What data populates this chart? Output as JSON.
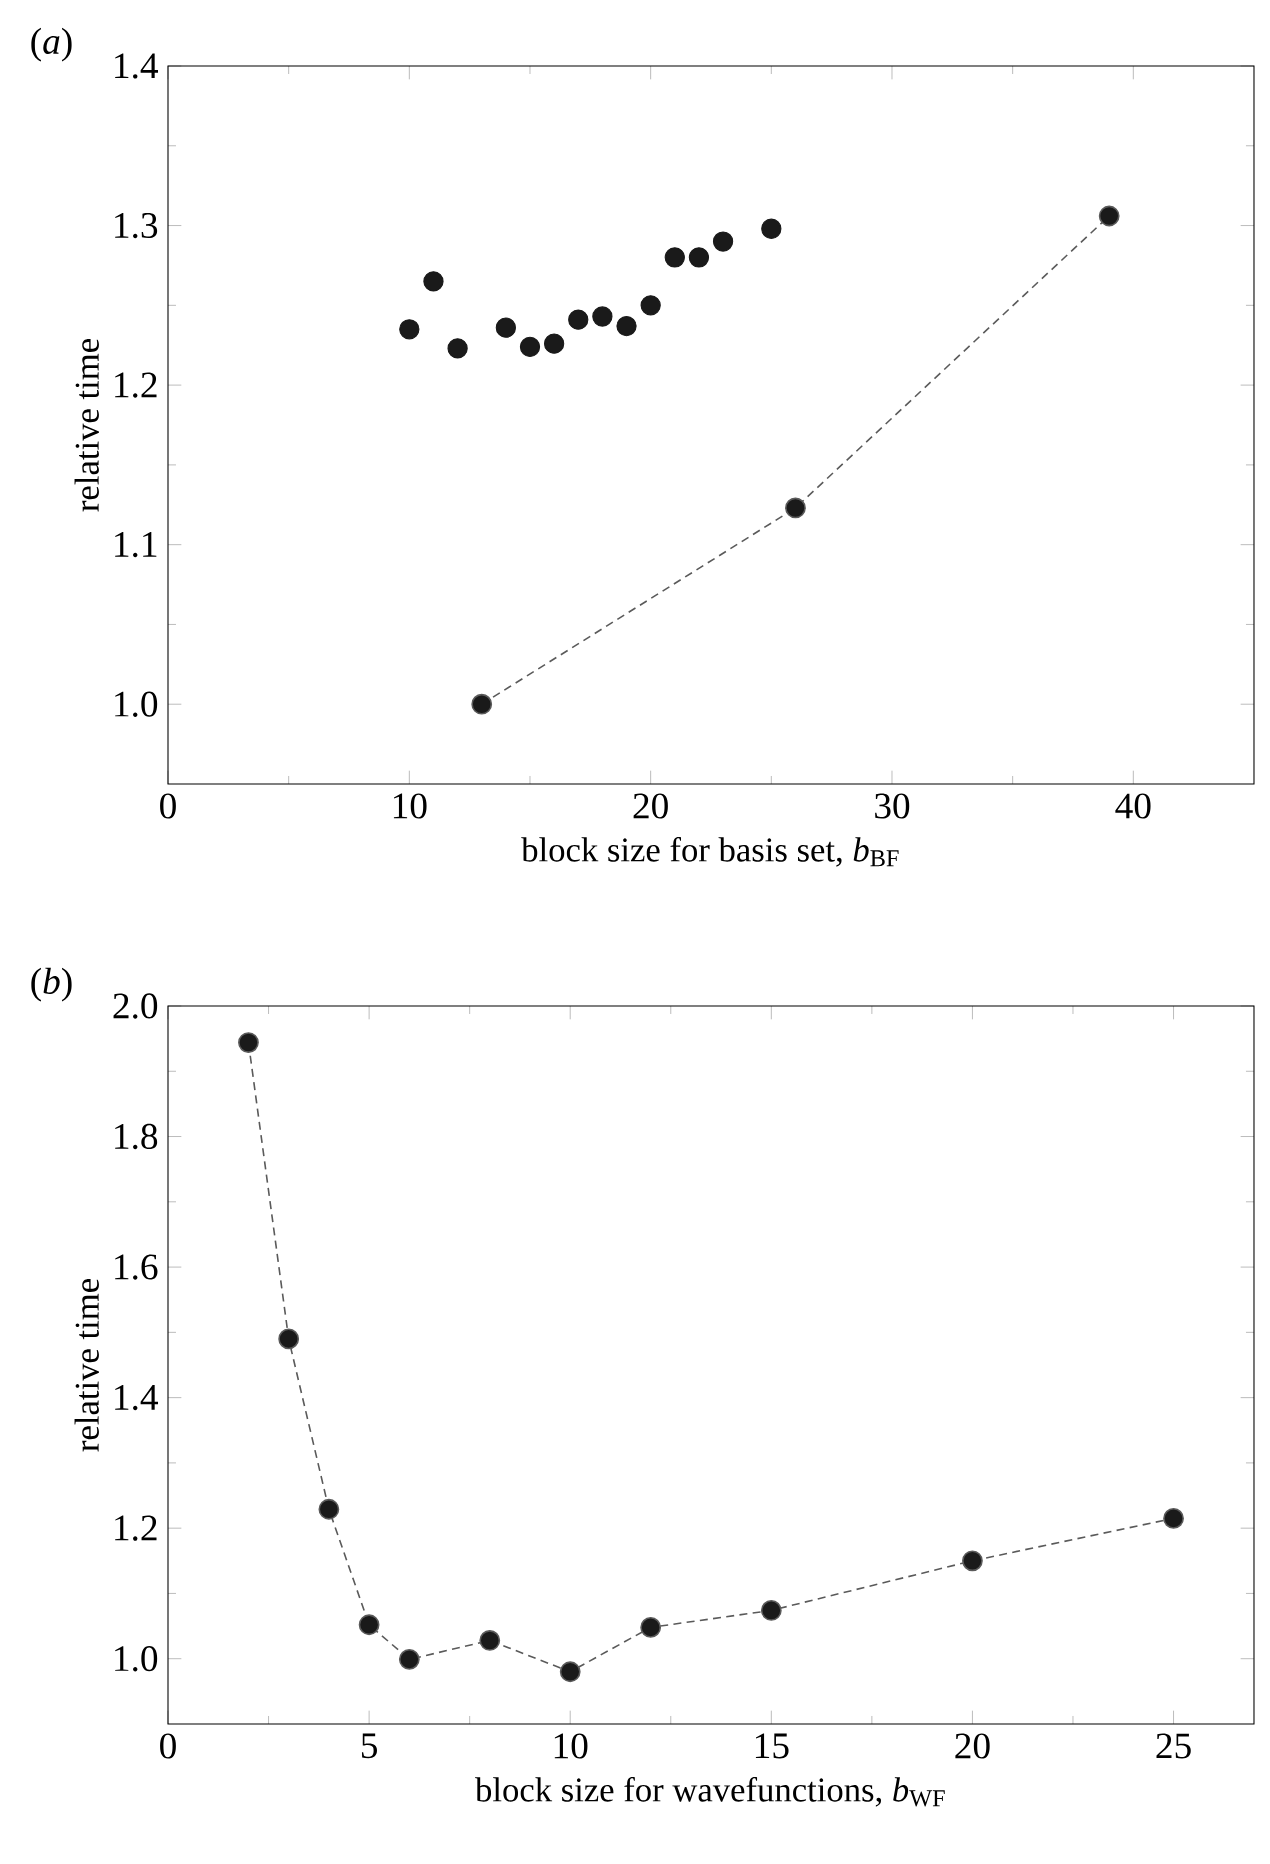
{
  "chart_data": [
    {
      "type": "scatter",
      "title": "(*a*)",
      "xlabel": "block size for basis set, *b*$_{BF}$",
      "ylabel": "relative time",
      "xlim": [
        0,
        45
      ],
      "ylim": [
        0.95,
        1.4
      ],
      "xticks": [
        0,
        10,
        20,
        30,
        40
      ],
      "yticks": [
        {
          "value": 1.0,
          "label": "1.0"
        },
        {
          "value": 1.1,
          "label": "1.1"
        },
        {
          "value": 1.2,
          "label": "1.2"
        },
        {
          "value": 1.3,
          "label": "1.3"
        },
        {
          "value": 1.4,
          "label": "1.4"
        }
      ],
      "marker": "circle",
      "series": [
        {
          "type": "scatter",
          "color": "#1a1a1a",
          "x": [
            10,
            11,
            12,
            14,
            15,
            16,
            17,
            18,
            19,
            20,
            21,
            22,
            23,
            25
          ],
          "values": [
            1.235,
            1.265,
            1.223,
            1.236,
            1.224,
            1.226,
            1.241,
            1.243,
            1.237,
            1.25,
            1.28,
            1.28,
            1.29,
            1.298
          ]
        },
        {
          "type": "line",
          "color": "#1a1a1a",
          "line_style": "dashed",
          "x": [
            13,
            26,
            39
          ],
          "values": [
            1.0,
            1.123,
            1.306
          ]
        }
      ]
    },
    {
      "type": "line",
      "title": "(*b*)",
      "xlabel": "block size for wavefunctions, *b*$_{WF}$",
      "ylabel": "relative time",
      "xlim": [
        0,
        27
      ],
      "ylim": [
        0.9,
        2.0
      ],
      "xticks": [
        0,
        5,
        10,
        15,
        20,
        25
      ],
      "yticks": [
        {
          "value": 1.0,
          "label": "1.0"
        },
        {
          "value": 1.2,
          "label": "1.2"
        },
        {
          "value": 1.4,
          "label": "1.4"
        },
        {
          "value": 1.6,
          "label": "1.6"
        },
        {
          "value": 1.8,
          "label": "1.8"
        },
        {
          "value": 2.0,
          "label": "2.0"
        }
      ],
      "marker": "circle",
      "line_style": "dashed",
      "series": [
        {
          "color": "#1a1a1a",
          "x": [
            2,
            3,
            4,
            5,
            6,
            8,
            10,
            12,
            15,
            20,
            25
          ],
          "values": [
            1.944,
            1.49,
            1.229,
            1.052,
            0.999,
            1.028,
            0.98,
            1.048,
            1.074,
            1.15,
            1.215
          ]
        }
      ]
    }
  ]
}
